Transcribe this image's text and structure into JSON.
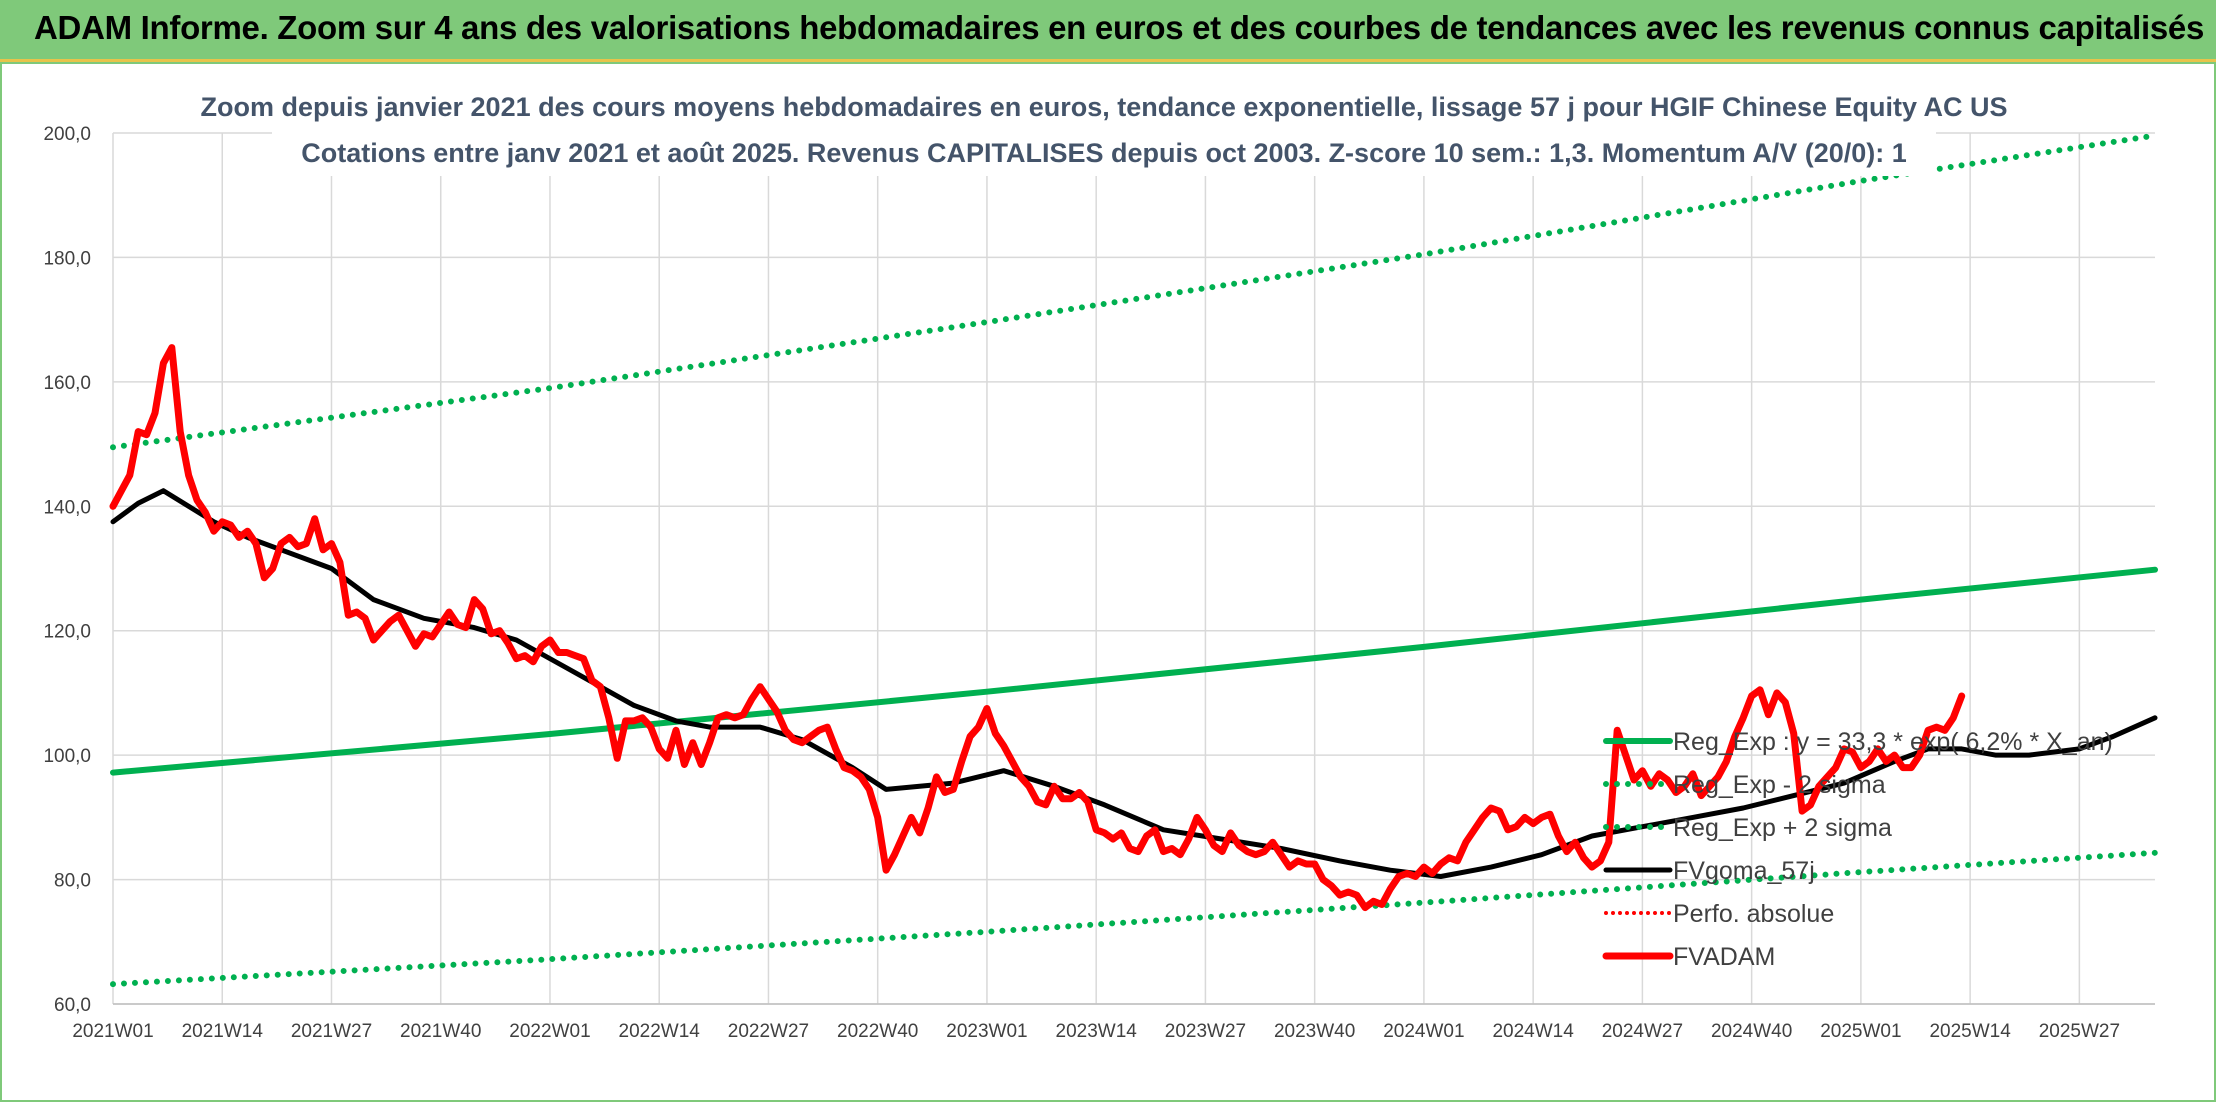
{
  "banner": {
    "title": "ADAM Informe. Zoom sur 4 ans des valorisations hebdomadaires en euros et des courbes de tendances avec les revenus connus capitalisés"
  },
  "chart_data": {
    "type": "line",
    "subtitle_lines": [
      "Zoom depuis janvier 2021 des cours moyens hebdomadaires en euros, tendance exponentielle, lissage 57 j pour HGIF Chinese Equity AC US",
      "Cotations entre janv 2021 et août 2025. Revenus CAPITALISES depuis oct 2003. Z-score 10 sem.: 1,3. Momentum A/V (20/0): 1"
    ],
    "x_tick_labels": [
      "2021W01",
      "2021W14",
      "2021W27",
      "2021W40",
      "2022W01",
      "2022W14",
      "2022W27",
      "2022W40",
      "2023W01",
      "2023W14",
      "2023W27",
      "2023W40",
      "2024W01",
      "2024W14",
      "2024W27",
      "2024W40",
      "2025W01",
      "2025W14",
      "2025W27"
    ],
    "x_tick_weeks": [
      0,
      13,
      26,
      39,
      52,
      65,
      78,
      91,
      104,
      117,
      130,
      143,
      156,
      169,
      182,
      195,
      208,
      221,
      234
    ],
    "xlim": [
      0,
      243
    ],
    "ylim": [
      60,
      200
    ],
    "y_tick_values": [
      60,
      80,
      100,
      120,
      140,
      160,
      180,
      200
    ],
    "y_tick_labels": [
      "60,0",
      "80,0",
      "100,0",
      "120,0",
      "140,0",
      "160,0",
      "180,0",
      "200,0"
    ],
    "grid": true,
    "legend_position": "lower-right",
    "series": [
      {
        "name": "Reg_Exp : y = 33,3 * exp( 6,2% * X_an)",
        "style": "solid",
        "color": "#00b050",
        "points": [
          [
            0,
            97.2
          ],
          [
            52,
            103.4
          ],
          [
            104,
            110.2
          ],
          [
            156,
            117.4
          ],
          [
            208,
            125.0
          ],
          [
            243,
            129.8
          ]
        ]
      },
      {
        "name": "Reg_Exp - 2 sigma",
        "style": "dotted",
        "color": "#00b050",
        "points": [
          [
            0,
            63.2
          ],
          [
            52,
            67.2
          ],
          [
            104,
            71.6
          ],
          [
            156,
            76.3
          ],
          [
            208,
            81.2
          ],
          [
            243,
            84.3
          ]
        ]
      },
      {
        "name": "Reg_Exp + 2 sigma",
        "style": "dotted",
        "color": "#00b050",
        "points": [
          [
            0,
            149.5
          ],
          [
            52,
            159.0
          ],
          [
            104,
            169.6
          ],
          [
            156,
            180.5
          ],
          [
            208,
            192.3
          ],
          [
            243,
            199.6
          ]
        ]
      },
      {
        "name": "FVgoma_57j",
        "style": "solid",
        "color": "#000000",
        "points": [
          [
            0,
            137.5
          ],
          [
            3,
            140.5
          ],
          [
            6,
            142.5
          ],
          [
            9,
            140
          ],
          [
            12,
            137.5
          ],
          [
            16,
            135
          ],
          [
            20,
            133
          ],
          [
            26,
            130
          ],
          [
            31,
            125
          ],
          [
            37,
            122
          ],
          [
            43,
            120.5
          ],
          [
            48,
            118.5
          ],
          [
            54,
            114
          ],
          [
            58,
            111
          ],
          [
            62,
            108
          ],
          [
            67,
            105.5
          ],
          [
            71,
            104.5
          ],
          [
            77,
            104.5
          ],
          [
            82,
            102.5
          ],
          [
            88,
            98
          ],
          [
            92,
            94.5
          ],
          [
            96,
            95
          ],
          [
            100,
            95.5
          ],
          [
            106,
            97.5
          ],
          [
            112,
            95
          ],
          [
            118,
            92
          ],
          [
            125,
            88
          ],
          [
            132,
            86.5
          ],
          [
            139,
            85
          ],
          [
            146,
            83
          ],
          [
            152,
            81.5
          ],
          [
            158,
            80.5
          ],
          [
            164,
            82
          ],
          [
            170,
            84
          ],
          [
            176,
            87
          ],
          [
            182,
            88.5
          ],
          [
            188,
            90
          ],
          [
            194,
            91.5
          ],
          [
            200,
            93.5
          ],
          [
            206,
            95.5
          ],
          [
            212,
            99
          ],
          [
            216,
            101
          ],
          [
            220,
            101
          ],
          [
            224,
            100
          ],
          [
            228,
            100
          ],
          [
            234,
            101
          ],
          [
            238,
            103
          ],
          [
            243,
            106
          ]
        ]
      },
      {
        "name": "Perfo. absolue",
        "style": "dotted",
        "color": "#ff0000",
        "points": []
      },
      {
        "name": "FVADAM",
        "style": "solid",
        "color": "#ff0000",
        "points": [
          [
            0,
            140
          ],
          [
            2,
            145
          ],
          [
            3,
            152
          ],
          [
            4,
            151.5
          ],
          [
            5,
            155
          ],
          [
            6,
            163
          ],
          [
            7,
            165.5
          ],
          [
            8,
            152
          ],
          [
            9,
            145
          ],
          [
            10,
            141
          ],
          [
            11,
            139
          ],
          [
            12,
            136
          ],
          [
            13,
            137.5
          ],
          [
            14,
            137
          ],
          [
            15,
            135
          ],
          [
            16,
            136
          ],
          [
            17,
            134
          ],
          [
            18,
            128.5
          ],
          [
            19,
            130
          ],
          [
            20,
            134
          ],
          [
            21,
            135
          ],
          [
            22,
            133.5
          ],
          [
            23,
            134
          ],
          [
            24,
            138
          ],
          [
            25,
            133
          ],
          [
            26,
            134
          ],
          [
            27,
            131
          ],
          [
            28,
            122.5
          ],
          [
            29,
            123
          ],
          [
            30,
            122
          ],
          [
            31,
            118.5
          ],
          [
            32,
            120
          ],
          [
            33,
            121.5
          ],
          [
            34,
            122.5
          ],
          [
            35,
            120
          ],
          [
            36,
            117.5
          ],
          [
            37,
            119.5
          ],
          [
            38,
            119
          ],
          [
            39,
            121
          ],
          [
            40,
            123
          ],
          [
            41,
            121
          ],
          [
            42,
            120.5
          ],
          [
            43,
            125
          ],
          [
            44,
            123.5
          ],
          [
            45,
            119.5
          ],
          [
            46,
            120
          ],
          [
            47,
            118
          ],
          [
            48,
            115.5
          ],
          [
            49,
            116
          ],
          [
            50,
            115
          ],
          [
            51,
            117.5
          ],
          [
            52,
            118.5
          ],
          [
            53,
            116.5
          ],
          [
            54,
            116.5
          ],
          [
            55,
            116
          ],
          [
            56,
            115.5
          ],
          [
            57,
            112
          ],
          [
            58,
            111
          ],
          [
            59,
            106
          ],
          [
            60,
            99.5
          ],
          [
            61,
            105.5
          ],
          [
            62,
            105.5
          ],
          [
            63,
            106
          ],
          [
            64,
            104.5
          ],
          [
            65,
            101
          ],
          [
            66,
            99.5
          ],
          [
            67,
            104
          ],
          [
            68,
            98.5
          ],
          [
            69,
            102
          ],
          [
            70,
            98.5
          ],
          [
            71,
            102
          ],
          [
            72,
            106
          ],
          [
            73,
            106.5
          ],
          [
            74,
            106
          ],
          [
            75,
            106.5
          ],
          [
            76,
            109
          ],
          [
            77,
            111
          ],
          [
            78,
            109
          ],
          [
            79,
            107
          ],
          [
            80,
            104
          ],
          [
            81,
            102.5
          ],
          [
            82,
            102
          ],
          [
            83,
            103
          ],
          [
            84,
            104
          ],
          [
            85,
            104.5
          ],
          [
            86,
            101
          ],
          [
            87,
            98
          ],
          [
            88,
            97.5
          ],
          [
            89,
            96.5
          ],
          [
            90,
            94.5
          ],
          [
            91,
            90
          ],
          [
            92,
            81.5
          ],
          [
            93,
            84
          ],
          [
            94,
            87
          ],
          [
            95,
            90
          ],
          [
            96,
            87.5
          ],
          [
            97,
            91.5
          ],
          [
            98,
            96.5
          ],
          [
            99,
            94
          ],
          [
            100,
            94.5
          ],
          [
            101,
            99
          ],
          [
            102,
            103
          ],
          [
            103,
            104.5
          ],
          [
            104,
            107.5
          ],
          [
            105,
            103.5
          ],
          [
            106,
            101.5
          ],
          [
            107,
            99
          ],
          [
            108,
            96.5
          ],
          [
            109,
            95
          ],
          [
            110,
            92.5
          ],
          [
            111,
            92
          ],
          [
            112,
            95
          ],
          [
            113,
            93
          ],
          [
            114,
            93
          ],
          [
            115,
            94
          ],
          [
            116,
            92.5
          ],
          [
            117,
            88
          ],
          [
            118,
            87.5
          ],
          [
            119,
            86.5
          ],
          [
            120,
            87.5
          ],
          [
            121,
            85
          ],
          [
            122,
            84.5
          ],
          [
            123,
            87
          ],
          [
            124,
            88
          ],
          [
            125,
            84.5
          ],
          [
            126,
            85
          ],
          [
            127,
            84
          ],
          [
            128,
            86.5
          ],
          [
            129,
            90
          ],
          [
            130,
            88
          ],
          [
            131,
            85.5
          ],
          [
            132,
            84.5
          ],
          [
            133,
            87.5
          ],
          [
            134,
            85.5
          ],
          [
            135,
            84.5
          ],
          [
            136,
            84
          ],
          [
            137,
            84.5
          ],
          [
            138,
            86
          ],
          [
            139,
            84
          ],
          [
            140,
            82
          ],
          [
            141,
            83
          ],
          [
            142,
            82.5
          ],
          [
            143,
            82.5
          ],
          [
            144,
            80
          ],
          [
            145,
            79
          ],
          [
            146,
            77.5
          ],
          [
            147,
            78
          ],
          [
            148,
            77.5
          ],
          [
            149,
            75.5
          ],
          [
            150,
            76.5
          ],
          [
            151,
            76
          ],
          [
            152,
            78.5
          ],
          [
            153,
            80.5
          ],
          [
            154,
            81
          ],
          [
            155,
            80.5
          ],
          [
            156,
            82
          ],
          [
            157,
            81
          ],
          [
            158,
            82.5
          ],
          [
            159,
            83.5
          ],
          [
            160,
            83
          ],
          [
            161,
            86
          ],
          [
            162,
            88
          ],
          [
            163,
            90
          ],
          [
            164,
            91.5
          ],
          [
            165,
            91
          ],
          [
            166,
            88
          ],
          [
            167,
            88.5
          ],
          [
            168,
            90
          ],
          [
            169,
            89
          ],
          [
            170,
            90
          ],
          [
            171,
            90.5
          ],
          [
            172,
            87
          ],
          [
            173,
            84.5
          ],
          [
            174,
            86
          ],
          [
            175,
            83.5
          ],
          [
            176,
            82
          ],
          [
            177,
            83
          ],
          [
            178,
            86
          ],
          [
            179,
            104
          ],
          [
            180,
            100
          ],
          [
            181,
            96
          ],
          [
            182,
            97.5
          ],
          [
            183,
            95
          ],
          [
            184,
            97
          ],
          [
            185,
            96
          ],
          [
            186,
            94
          ],
          [
            187,
            95
          ],
          [
            188,
            97
          ],
          [
            189,
            93.5
          ],
          [
            190,
            95
          ],
          [
            191,
            96.5
          ],
          [
            192,
            99
          ],
          [
            193,
            103
          ],
          [
            194,
            106
          ],
          [
            195,
            109.5
          ],
          [
            196,
            110.5
          ],
          [
            197,
            106.5
          ],
          [
            198,
            110
          ],
          [
            199,
            108.5
          ],
          [
            200,
            103.5
          ],
          [
            201,
            91
          ],
          [
            202,
            92
          ],
          [
            203,
            95
          ],
          [
            204,
            96.5
          ],
          [
            205,
            98
          ],
          [
            206,
            101
          ],
          [
            207,
            100.5
          ],
          [
            208,
            98
          ],
          [
            209,
            99
          ],
          [
            210,
            101
          ],
          [
            211,
            99
          ],
          [
            212,
            100
          ],
          [
            213,
            98
          ],
          [
            214,
            98
          ],
          [
            215,
            100
          ],
          [
            216,
            104
          ],
          [
            217,
            104.5
          ],
          [
            218,
            104
          ],
          [
            219,
            106
          ],
          [
            220,
            109.5
          ]
        ]
      }
    ]
  }
}
